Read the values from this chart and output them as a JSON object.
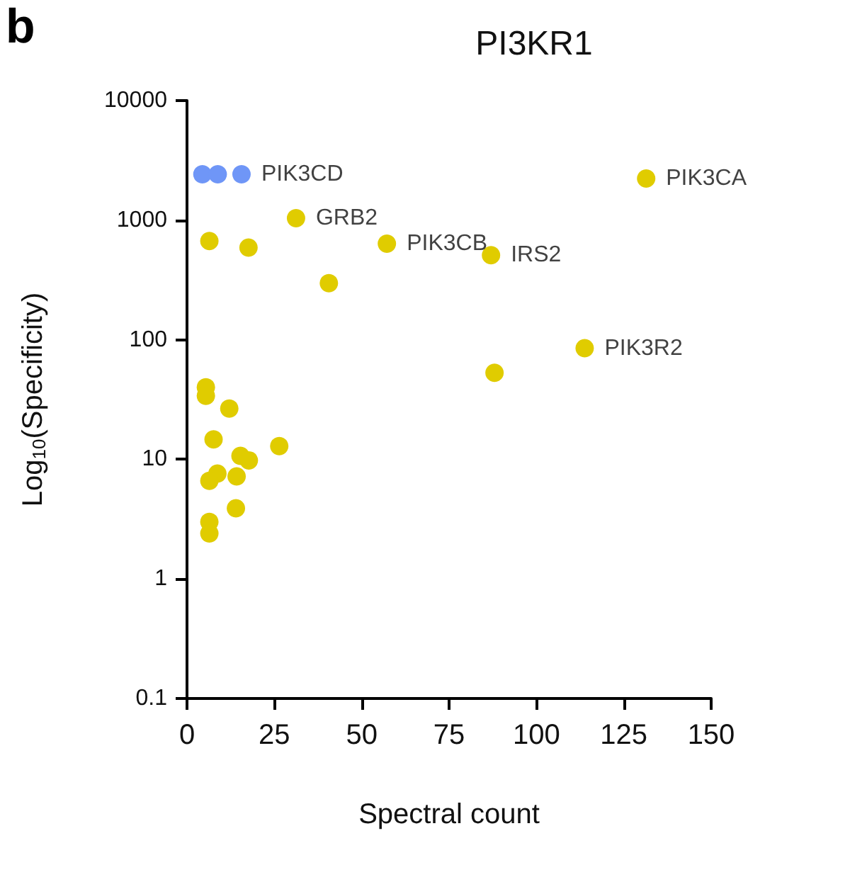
{
  "chart_data": {
    "type": "scatter",
    "title": "PI3KR1",
    "xlabel": "Spectral count",
    "ylabel": "Log$_{10}$(Specificity)",
    "series": [
      {
        "color": "#6f96f7",
        "x": [
          4.4,
          8.8,
          15.6
        ],
        "values": [
          2420,
          2420,
          2420
        ]
      },
      {
        "color": "#e0cc00",
        "x": [
          131.4,
          31.2,
          6.4,
          17.6,
          57.2,
          87.0,
          40.6,
          113.8,
          88.0,
          5.4,
          5.4,
          12.1,
          7.6,
          26.4,
          15.3,
          17.7,
          8.7,
          6.4,
          14.2,
          14.0,
          6.4,
          6.4
        ],
        "values": [
          2230,
          1040,
          670,
          590,
          635,
          510,
          297,
          85,
          53,
          40,
          34,
          26.6,
          14.7,
          12.9,
          10.7,
          9.8,
          7.6,
          6.6,
          7.2,
          3.9,
          3.0,
          2.4
        ]
      }
    ],
    "annotations": [
      "b",
      {
        "text": "PIK3CD",
        "x": 15.6,
        "y": 2420
      },
      {
        "text": "GRB2",
        "x": 31.2,
        "y": 1040
      },
      {
        "text": "PIK3CB",
        "x": 57.2,
        "y": 635
      },
      {
        "text": "IRS2",
        "x": 87.0,
        "y": 510
      },
      {
        "text": "PIK3CA",
        "x": 131.4,
        "y": 2230
      },
      {
        "text": "PIK3R2",
        "x": 113.8,
        "y": 85
      }
    ],
    "xlim": [
      0,
      150
    ],
    "xticks": [
      0,
      25,
      50,
      75,
      100,
      125,
      150
    ],
    "ylim": [
      0.1,
      10000
    ],
    "yticks": [
      0.1,
      1,
      10,
      100,
      1000,
      10000
    ],
    "log": "y",
    "grid": false,
    "marker": "circle"
  }
}
